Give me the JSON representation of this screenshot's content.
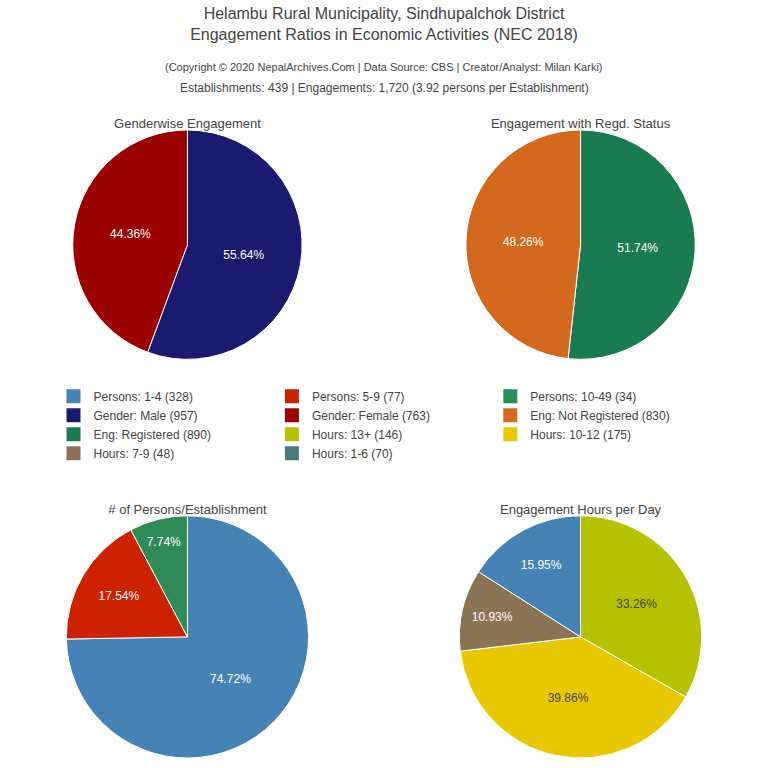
{
  "title": "Helambu Rural Municipality, Sindhupalchok District\nEngagement Ratios in Economic Activities (NEC 2018)",
  "subtitle": "(Copyright © 2020 NepalArchives.Com | Data Source: CBS | Creator/Analyst: Milan Karki)",
  "annotations": [
    "Establishments: 439 | Engagements: 1,720 (3.92 persons per Establishment)"
  ],
  "legend_items": [
    {
      "name": "Persons: 1-4 (328)",
      "color": "#4682B4"
    },
    {
      "name": "Persons: 5-9 (77)",
      "color": "#cc2200"
    },
    {
      "name": "Persons: 10-49 (34)",
      "color": "#2e8b57"
    },
    {
      "name": "Gender: Male (957)",
      "color": "#1a1a6e"
    },
    {
      "name": "Gender: Female (763)",
      "color": "#9b0000"
    },
    {
      "name": "Eng: Not Registered (830)",
      "color": "#d2691e"
    },
    {
      "name": "Eng: Registered (890)",
      "color": "#1a7a50"
    },
    {
      "name": "Hours: 13+ (146)",
      "color": "#b5c200"
    },
    {
      "name": "Hours: 10-12 (175)",
      "color": "#e8c800"
    },
    {
      "name": "Hours: 7-9 (48)",
      "color": "#8b7355"
    },
    {
      "name": "Hours: 1-6 (70)",
      "color": "#4a7b7b"
    }
  ],
  "chart_data": [
    {
      "type": "pie",
      "title": "Genderwise Engagement",
      "values": [
        55.64,
        44.36
      ],
      "colors": [
        "#1a1a6e",
        "#9b0000"
      ],
      "value_labels": [
        "55.64%",
        "44.36%"
      ],
      "data_labels": true
    },
    {
      "type": "pie",
      "title": "Engagement with Regd. Status",
      "values": [
        51.74,
        48.26
      ],
      "colors": [
        "#1a7a50",
        "#d2691e"
      ],
      "value_labels": [
        "51.74%",
        "48.26%"
      ],
      "data_labels": true
    },
    {
      "type": "pie",
      "title": "# of Persons/Establishment",
      "values": [
        74.72,
        17.54,
        7.74
      ],
      "colors": [
        "#4682B4",
        "#cc2200",
        "#2e8b57"
      ],
      "value_labels": [
        "74.72%",
        "17.54%",
        "7.74%"
      ],
      "data_labels": true
    },
    {
      "type": "pie",
      "title": "Engagement Hours per Day",
      "values": [
        33.26,
        39.86,
        10.93,
        15.95
      ],
      "colors": [
        "#b5c200",
        "#e8c800",
        "#8b7355",
        "#4682B4"
      ],
      "value_labels": [
        "33.26%",
        "39.86%",
        "10.93%",
        "15.95%"
      ],
      "data_labels": true
    }
  ]
}
